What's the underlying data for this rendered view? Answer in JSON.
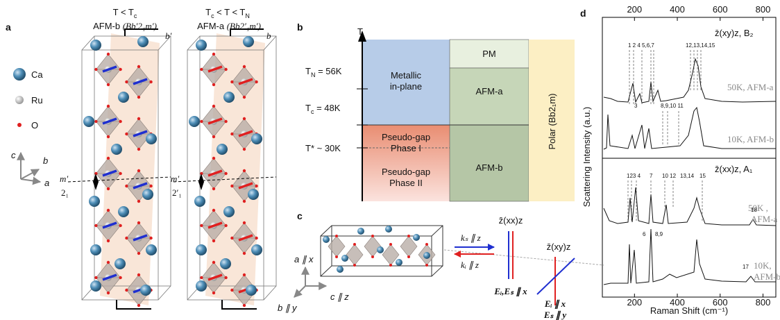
{
  "panel_a": {
    "label": "a",
    "legend": [
      "Ca",
      "Ru",
      "O"
    ],
    "axes": [
      "c",
      "b",
      "a"
    ],
    "structures": [
      {
        "temp": [
          "T < T",
          "c"
        ],
        "phase": "AFM-b",
        "group": "(Bb′2₁m′)",
        "axis": "b′",
        "mirror": "m′",
        "screw": "2₁"
      },
      {
        "temp": [
          "T",
          "c",
          " < T < T",
          "N"
        ],
        "phase": "AFM-a",
        "group": "(Bb2′₁m′)",
        "axis": "b",
        "mirror": "m′",
        "screw": "2′₁"
      }
    ]
  },
  "panel_b": {
    "label": "b",
    "axis": "T",
    "temps": [
      [
        "T",
        "N",
        " = 56K"
      ],
      [
        "T",
        "c",
        " = 48K"
      ],
      [
        "T* ~ 30K"
      ]
    ],
    "metallic": [
      "Metallic",
      "in-plane"
    ],
    "pg1": [
      "Pseudo-gap",
      "Phase I"
    ],
    "pg2": [
      "Pseudo-gap",
      "Phase II"
    ],
    "pm": "PM",
    "afm_a": "AFM-a",
    "afm_b": "AFM-b",
    "polar": "Polar (Bb2₁m)"
  },
  "panel_c": {
    "label": "c",
    "axes": [
      "a ∥ x",
      "b ∥ y",
      "c ∥ z"
    ],
    "ks": "kₛ ∥ z",
    "ki": "kᵢ ∥ z",
    "config1": {
      "geometry": "z̄(xx)z",
      "pol": "Eᵢ,Eₛ ∥ x"
    },
    "config2": {
      "geometry": "z̄(xy)z",
      "pol_i": "Eᵢ ∥ x",
      "pol_s": "Eₛ ∥ y"
    }
  },
  "panel_d": {
    "label": "d",
    "xlim": [
      50,
      860
    ],
    "xticks": [
      200,
      400,
      600,
      800
    ],
    "xlabel": "Raman Shift (cm⁻¹)",
    "ylabel": "Scattering Intensity (a.u.)",
    "top": {
      "geometry": "z̄(xy)z, B₂",
      "traces": [
        "50K, AFM-a",
        "10K, AFM-b"
      ],
      "peaks": [
        "1 2 4 5,6,7",
        "12,13,14,15",
        "3",
        "8,9,10 11"
      ]
    },
    "bottom": {
      "geometry": "z̄(xx)z, A₁",
      "traces": [
        [
          "50K ,",
          "AFM-a"
        ],
        [
          "10K,",
          "AFM-b"
        ]
      ],
      "peaks": [
        "123 4",
        "7",
        "10 12",
        "13,14",
        "15",
        "18",
        "6",
        "8,9",
        "17"
      ]
    }
  }
}
